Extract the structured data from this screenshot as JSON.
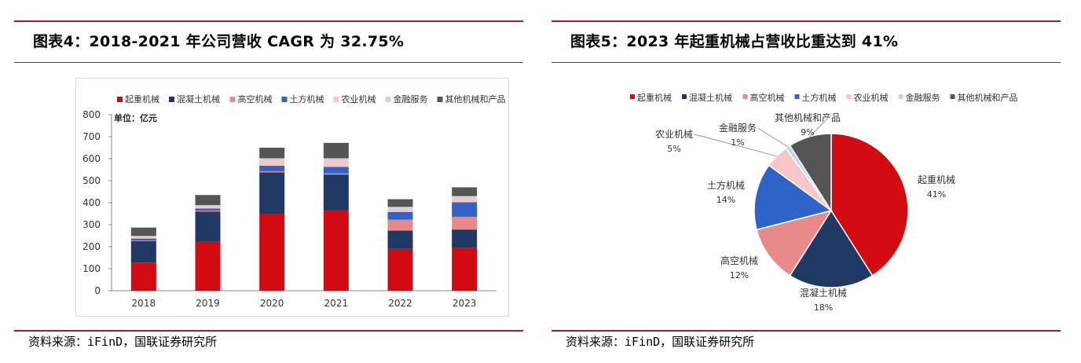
{
  "left": {
    "title": "图表4：2018-2021 年公司营收 CAGR 为 32.75%",
    "source": "资料来源：iFinD，国联证券研究所",
    "chart_data": {
      "type": "bar",
      "stacked": true,
      "unit_label": "单位：亿元",
      "categories": [
        "2018",
        "2019",
        "2020",
        "2021",
        "2022",
        "2023"
      ],
      "ylim": [
        0,
        800
      ],
      "yticks": [
        0,
        100,
        200,
        300,
        400,
        500,
        600,
        700,
        800
      ],
      "legend_position": "top",
      "series": [
        {
          "name": "起重机械",
          "color": "#d20a11",
          "values": [
            128,
            222,
            350,
            366,
            190,
            195
          ]
        },
        {
          "name": "混凝土机械",
          "color": "#1f3864",
          "values": [
            97,
            138,
            188,
            162,
            83,
            83
          ]
        },
        {
          "name": "高空机械",
          "color": "#e88a8a",
          "values": [
            3,
            4,
            5,
            5,
            50,
            58
          ]
        },
        {
          "name": "土方机械",
          "color": "#2e63c7",
          "values": [
            9,
            10,
            25,
            30,
            35,
            66
          ]
        },
        {
          "name": "农业机械",
          "color": "#f7c6c7",
          "values": [
            8,
            10,
            26,
            31,
            18,
            24
          ]
        },
        {
          "name": "金融服务",
          "color": "#bdd7ee",
          "values": [
            4,
            5,
            8,
            8,
            5,
            4
          ]
        },
        {
          "name": "其他机械和产品",
          "color": "#555555",
          "values": [
            38,
            46,
            48,
            70,
            35,
            40
          ]
        }
      ]
    }
  },
  "right": {
    "title": "图表5：2023 年起重机械占营收比重达到 41%",
    "source": "资料来源：iFinD，国联证券研究所",
    "chart_data": {
      "type": "pie",
      "legend_position": "top",
      "slices": [
        {
          "name": "起重机械",
          "value": 41,
          "label": "41%",
          "color": "#d20a11"
        },
        {
          "name": "混凝土机械",
          "value": 18,
          "label": "18%",
          "color": "#1f3864"
        },
        {
          "name": "高空机械",
          "value": 12,
          "label": "12%",
          "color": "#e88a8a"
        },
        {
          "name": "土方机械",
          "value": 14,
          "label": "14%",
          "color": "#2e63c7"
        },
        {
          "name": "农业机械",
          "value": 5,
          "label": "5%",
          "color": "#f7c6c7"
        },
        {
          "name": "金融服务",
          "value": 1,
          "label": "1%",
          "color": "#bdd7ee"
        },
        {
          "name": "其他机械和产品",
          "value": 9,
          "label": "9%",
          "color": "#555555"
        }
      ]
    }
  }
}
